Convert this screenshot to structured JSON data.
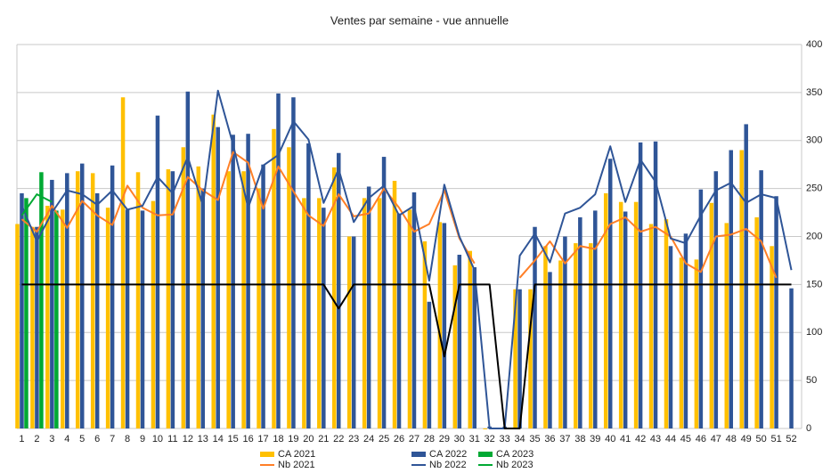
{
  "chart_data": {
    "type": "bar",
    "title": "Ventes par semaine - vue annuelle",
    "categories": [
      "1",
      "2",
      "3",
      "4",
      "5",
      "6",
      "7",
      "8",
      "9",
      "10",
      "11",
      "12",
      "13",
      "14",
      "15",
      "16",
      "17",
      "18",
      "19",
      "20",
      "21",
      "22",
      "23",
      "24",
      "25",
      "26",
      "27",
      "28",
      "29",
      "30",
      "31",
      "32",
      "33",
      "34",
      "35",
      "36",
      "37",
      "38",
      "39",
      "40",
      "41",
      "42",
      "43",
      "44",
      "45",
      "46",
      "47",
      "48",
      "49",
      "50",
      "51",
      "52"
    ],
    "ylim": [
      0,
      400
    ],
    "yticks": [
      0,
      50,
      100,
      150,
      200,
      250,
      300,
      350,
      400
    ],
    "grid": true,
    "legend": "bottom",
    "series": [
      {
        "name": "CA 2021",
        "type": "bar",
        "color": "#ffc000",
        "values": [
          213,
          210,
          232,
          228,
          268,
          266,
          230,
          345,
          267,
          237,
          270,
          293,
          273,
          327,
          268,
          268,
          250,
          312,
          293,
          240,
          240,
          272,
          200,
          240,
          240,
          258,
          228,
          195,
          215,
          170,
          185,
          0,
          0,
          145,
          145,
          190,
          175,
          193,
          193,
          245,
          236,
          236,
          213,
          218,
          178,
          176,
          235,
          214,
          290,
          220,
          190,
          null
        ]
      },
      {
        "name": "CA 2022",
        "type": "bar",
        "color": "#2f5597",
        "values": [
          245,
          210,
          259,
          266,
          276,
          245,
          274,
          228,
          227,
          326,
          268,
          351,
          250,
          314,
          306,
          307,
          275,
          349,
          345,
          297,
          230,
          287,
          200,
          252,
          283,
          224,
          246,
          132,
          214,
          181,
          168,
          2,
          2,
          145,
          210,
          163,
          200,
          220,
          227,
          281,
          226,
          298,
          299,
          190,
          203,
          249,
          268,
          290,
          317,
          269,
          242,
          146
        ]
      },
      {
        "name": "CA 2023",
        "type": "bar",
        "color": "#00a933",
        "values": [
          240,
          267,
          227,
          null,
          null,
          null,
          null,
          null,
          null,
          null,
          null,
          null,
          null,
          null,
          null,
          null,
          null,
          null,
          null,
          null,
          null,
          null,
          null,
          null,
          null,
          null,
          null,
          null,
          null,
          null,
          null,
          null,
          null,
          null,
          null,
          null,
          null,
          null,
          null,
          null,
          null,
          null,
          null,
          null,
          null,
          null,
          null,
          null,
          null,
          null,
          null,
          null
        ]
      },
      {
        "name": "Nb 2021",
        "type": "line",
        "color": "#ff7f27",
        "values": [
          218,
          205,
          232,
          209,
          237,
          222,
          212,
          253,
          230,
          222,
          223,
          262,
          248,
          238,
          288,
          277,
          229,
          273,
          247,
          222,
          211,
          244,
          221,
          224,
          250,
          230,
          205,
          213,
          248,
          198,
          172,
          null,
          null,
          157,
          175,
          195,
          172,
          190,
          187,
          213,
          220,
          205,
          210,
          200,
          172,
          163,
          200,
          202,
          208,
          195,
          157,
          null
        ]
      },
      {
        "name": "Nb 2022",
        "type": "line",
        "color": "#2f5597",
        "values": [
          232,
          195,
          225,
          248,
          244,
          233,
          248,
          228,
          232,
          262,
          245,
          283,
          232,
          352,
          296,
          230,
          274,
          285,
          320,
          301,
          235,
          270,
          215,
          240,
          253,
          222,
          232,
          154,
          254,
          200,
          165,
          0,
          0,
          180,
          203,
          173,
          224,
          230,
          244,
          294,
          236,
          280,
          257,
          198,
          193,
          222,
          248,
          256,
          235,
          244,
          240,
          165
        ]
      },
      {
        "name": "Nb 2023",
        "type": "line",
        "color": "#00a933",
        "values": [
          222,
          244,
          236,
          null,
          null,
          null,
          null,
          null,
          null,
          null,
          null,
          null,
          null,
          null,
          null,
          null,
          null,
          null,
          null,
          null,
          null,
          null,
          null,
          null,
          null,
          null,
          null,
          null,
          null,
          null,
          null,
          null,
          null,
          null,
          null,
          null,
          null,
          null,
          null,
          null,
          null,
          null,
          null,
          null,
          null,
          null,
          null,
          null,
          null,
          null,
          null,
          null
        ]
      },
      {
        "type": "line",
        "color": "#000000",
        "width": 2,
        "values": [
          150,
          150,
          150,
          150,
          150,
          150,
          150,
          150,
          150,
          150,
          150,
          150,
          150,
          150,
          150,
          150,
          150,
          150,
          150,
          150,
          150,
          125,
          150,
          150,
          150,
          150,
          150,
          150,
          75,
          150,
          150,
          150,
          0,
          0,
          150,
          150,
          150,
          150,
          150,
          150,
          150,
          150,
          150,
          150,
          150,
          150,
          150,
          150,
          150,
          150,
          150,
          150
        ]
      }
    ]
  }
}
